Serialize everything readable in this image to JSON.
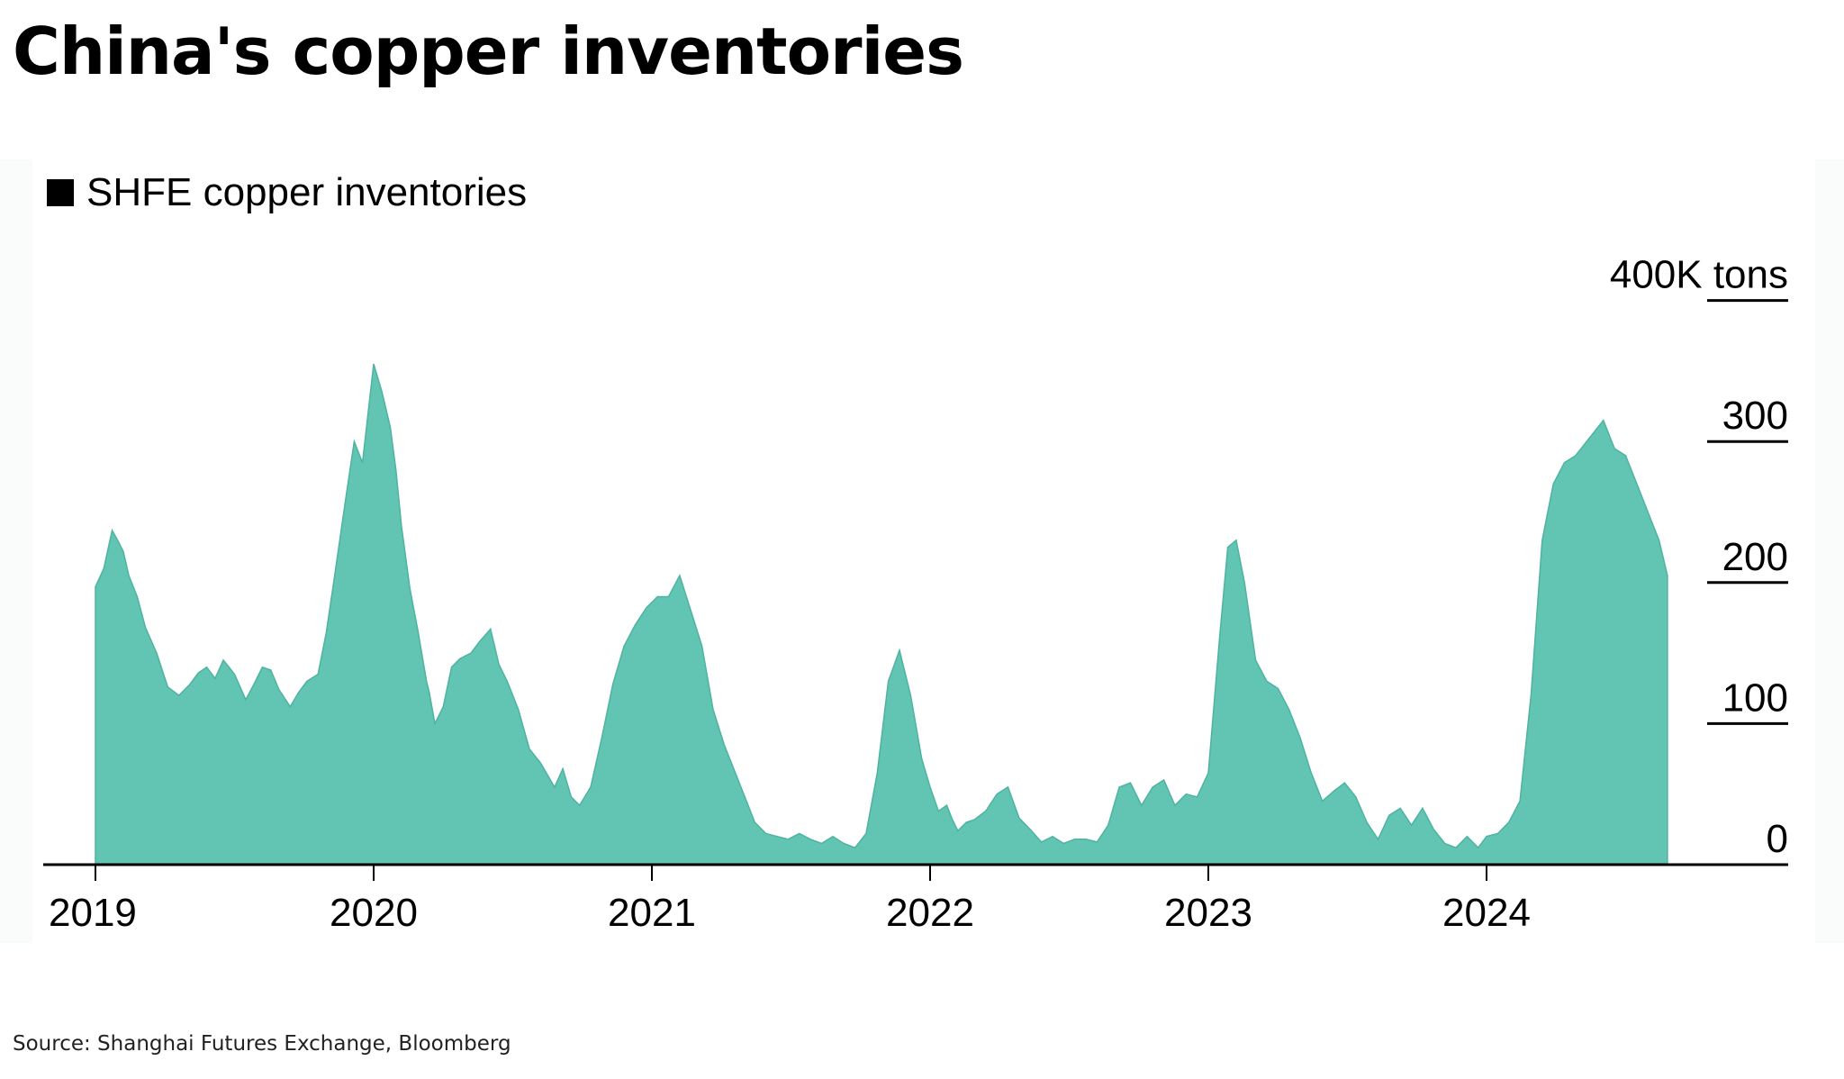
{
  "title": "China's copper inventories",
  "source": "Source: Shanghai Futures Exchange, Bloomberg",
  "colors": {
    "area": "#62c4b3",
    "axis": "#000000",
    "panel": "#fafcfb"
  },
  "chart_data": {
    "type": "area",
    "title": "China's copper inventories",
    "unit": "K tons",
    "legend": [
      "SHFE copper inventories"
    ],
    "legend_position": "top-left",
    "x_ticks": [
      "2019",
      "2020",
      "2021",
      "2022",
      "2023",
      "2024"
    ],
    "xlim": [
      2019.0,
      2025.1
    ],
    "y_ticks": [
      "0",
      "100",
      "200",
      "300",
      "400K tons"
    ],
    "y_tick_values": [
      0,
      100,
      200,
      300,
      400
    ],
    "ylim": [
      0,
      400
    ],
    "grid": false,
    "series": [
      {
        "name": "SHFE copper inventories",
        "x": [
          2019.0,
          2019.03,
          2019.06,
          2019.08,
          2019.1,
          2019.12,
          2019.15,
          2019.18,
          2019.22,
          2019.26,
          2019.3,
          2019.34,
          2019.37,
          2019.4,
          2019.43,
          2019.46,
          2019.5,
          2019.54,
          2019.57,
          2019.6,
          2019.63,
          2019.66,
          2019.7,
          2019.73,
          2019.76,
          2019.8,
          2019.83,
          2019.86,
          2019.9,
          2019.93,
          2019.96,
          2020.0,
          2020.03,
          2020.06,
          2020.08,
          2020.1,
          2020.13,
          2020.16,
          2020.19,
          2020.2,
          2020.22,
          2020.25,
          2020.28,
          2020.31,
          2020.35,
          2020.38,
          2020.42,
          2020.45,
          2020.48,
          2020.52,
          2020.56,
          2020.6,
          2020.65,
          2020.68,
          2020.71,
          2020.74,
          2020.78,
          2020.82,
          2020.86,
          2020.9,
          2020.94,
          2020.98,
          2021.02,
          2021.06,
          2021.1,
          2021.14,
          2021.18,
          2021.22,
          2021.26,
          2021.3,
          2021.34,
          2021.37,
          2021.41,
          2021.45,
          2021.49,
          2021.53,
          2021.57,
          2021.61,
          2021.65,
          2021.69,
          2021.73,
          2021.77,
          2021.81,
          2021.85,
          2021.89,
          2021.93,
          2021.97,
          2022.0,
          2022.03,
          2022.06,
          2022.08,
          2022.1,
          2022.13,
          2022.16,
          2022.2,
          2022.24,
          2022.28,
          2022.32,
          2022.36,
          2022.4,
          2022.44,
          2022.48,
          2022.52,
          2022.56,
          2022.6,
          2022.64,
          2022.68,
          2022.72,
          2022.76,
          2022.8,
          2022.84,
          2022.88,
          2022.92,
          2022.96,
          2023.0,
          2023.04,
          2023.07,
          2023.1,
          2023.13,
          2023.17,
          2023.21,
          2023.25,
          2023.29,
          2023.33,
          2023.37,
          2023.41,
          2023.45,
          2023.49,
          2023.53,
          2023.57,
          2023.61,
          2023.65,
          2023.69,
          2023.73,
          2023.77,
          2023.81,
          2023.85,
          2023.89,
          2023.93,
          2023.97,
          2024.0,
          2024.04,
          2024.08,
          2024.12,
          2024.16,
          2024.2,
          2024.24,
          2024.28,
          2024.32,
          2024.36,
          2024.4,
          2024.42,
          2024.46,
          2024.5,
          2024.54,
          2024.58,
          2024.62,
          2024.65
        ],
        "values": [
          197,
          210,
          237,
          230,
          222,
          205,
          190,
          168,
          150,
          126,
          120,
          128,
          136,
          140,
          132,
          145,
          135,
          117,
          128,
          140,
          138,
          124,
          112,
          122,
          130,
          135,
          165,
          205,
          260,
          300,
          285,
          355,
          335,
          310,
          280,
          240,
          196,
          165,
          130,
          122,
          100,
          112,
          140,
          146,
          150,
          158,
          167,
          142,
          130,
          110,
          82,
          72,
          55,
          68,
          48,
          42,
          55,
          90,
          128,
          155,
          170,
          182,
          190,
          190,
          205,
          180,
          155,
          110,
          85,
          65,
          45,
          30,
          22,
          20,
          18,
          22,
          18,
          15,
          20,
          15,
          12,
          22,
          65,
          130,
          152,
          120,
          75,
          55,
          38,
          42,
          32,
          24,
          30,
          32,
          38,
          50,
          55,
          33,
          25,
          16,
          20,
          15,
          18,
          18,
          16,
          28,
          55,
          58,
          42,
          55,
          60,
          42,
          50,
          48,
          65,
          160,
          225,
          230,
          200,
          145,
          130,
          125,
          110,
          90,
          65,
          45,
          52,
          58,
          48,
          30,
          18,
          35,
          40,
          28,
          40,
          25,
          15,
          12,
          20,
          12,
          20,
          22,
          30,
          45,
          120,
          230,
          270,
          285,
          290,
          300,
          310,
          315,
          295,
          290,
          270,
          250,
          230,
          205
        ]
      }
    ]
  }
}
